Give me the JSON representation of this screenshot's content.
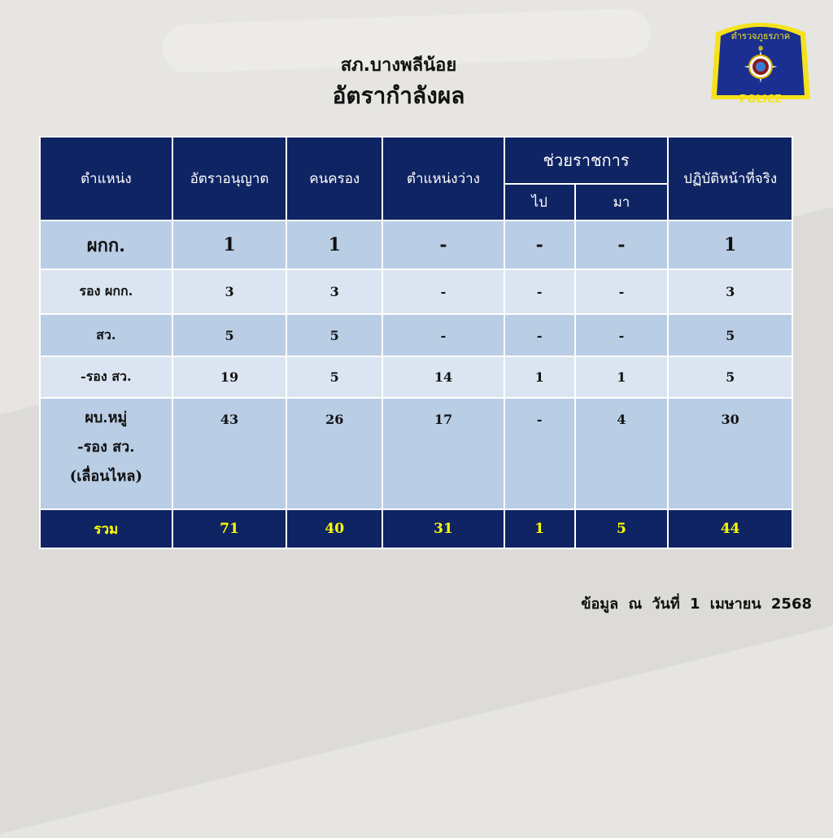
{
  "header": {
    "station": "สภ.บางพลีน้อย",
    "title": "อัตรากำลังผล"
  },
  "logo": {
    "top_text": "ตำรวจภูธรภาค ๑",
    "bottom_text": "POLICE",
    "colors": {
      "field": "#1a2f8f",
      "border": "#f5e21a"
    }
  },
  "table": {
    "columns": [
      "ตำแหน่ง",
      "อัตราอนุญาต",
      "คนครอง",
      "ตำแหน่งว่าง",
      "ช่วยราชการ",
      "ปฏิบัติหน้าที่จริง"
    ],
    "subcolumns": [
      "ไป",
      "มา"
    ],
    "rows": [
      [
        "ผกก.",
        "1",
        "1",
        "-",
        "-",
        "-",
        "1"
      ],
      [
        "รอง ผกก.",
        "3",
        "3",
        "-",
        "-",
        "-",
        "3"
      ],
      [
        "สว.",
        "5",
        "5",
        "-",
        "-",
        "-",
        "5"
      ],
      [
        "-รอง สว.",
        "19",
        "5",
        "14",
        "1",
        "1",
        "5"
      ],
      [
        "ผบ.หมู่\n-รอง สว.\n(เลื่อนไหล)",
        "43",
        "26",
        "17",
        "-",
        "4",
        "30"
      ]
    ],
    "total": [
      "รวม",
      "71",
      "40",
      "31",
      "1",
      "5",
      "44"
    ]
  },
  "footer": {
    "label": "ข้อมูล ณ วันที่",
    "date": "1 เมษายน 2568"
  },
  "colors": {
    "header_bg": "#0f2463",
    "row_dark": "#b9cde5",
    "row_light": "#dbe5f1",
    "total_text": "#ffff00"
  }
}
